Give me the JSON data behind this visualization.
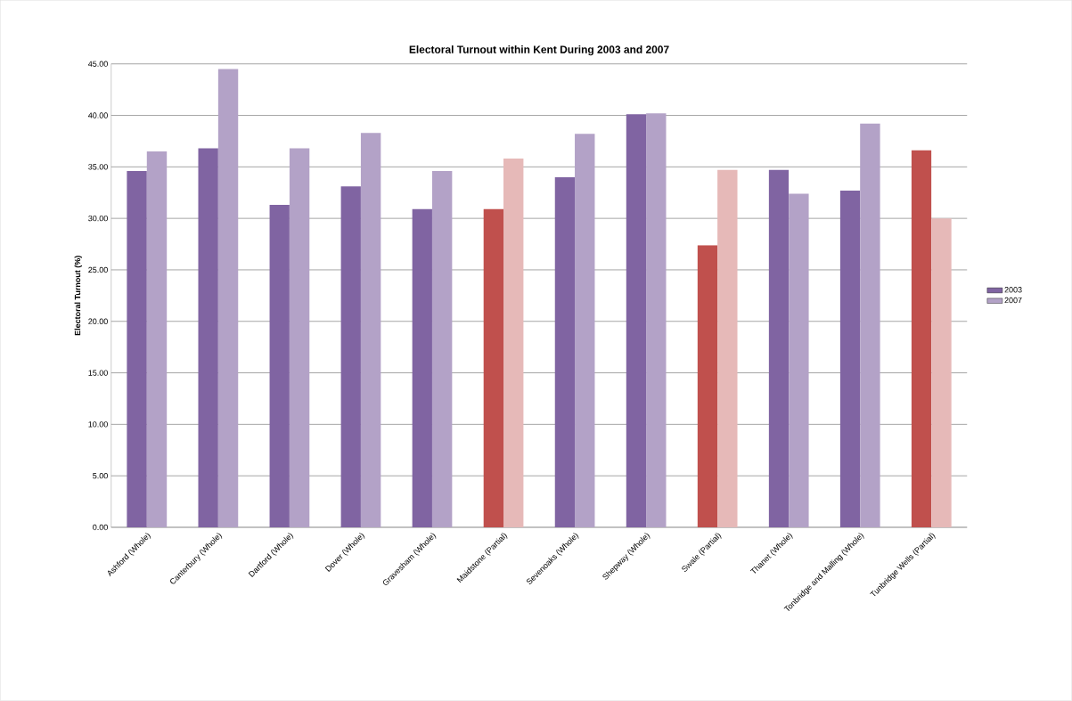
{
  "chart_data": {
    "type": "bar",
    "title": "Electoral Turnout within Kent During 2003 and 2007",
    "ylabel": "Electoral Turnout (%)",
    "categories": [
      "Ashford (Whole)",
      "Canterbury (Whole)",
      "Dartford (Whole)",
      "Dover (Whole)",
      "Gravesham (Whole)",
      "Maidstone (Partial)",
      "Sevenoaks (Whole)",
      "Shepway (Whole)",
      "Swale (Partial)",
      "Thanet (Whole)",
      "Tonbridge and Malling (Whole)",
      "Tunbridge Wells (Partial)"
    ],
    "series": [
      {
        "name": "2003",
        "color": "#8064a2",
        "colors": [
          "#8064a2",
          "#8064a2",
          "#8064a2",
          "#8064a2",
          "#8064a2",
          "#c0504d",
          "#8064a2",
          "#8064a2",
          "#c0504d",
          "#8064a2",
          "#8064a2",
          "#c0504d"
        ],
        "values": [
          34.6,
          36.8,
          31.3,
          33.1,
          30.9,
          30.9,
          34.0,
          40.1,
          27.4,
          34.7,
          32.7,
          36.6
        ]
      },
      {
        "name": "2007",
        "color": "#b3a2c7",
        "colors": [
          "#b3a2c7",
          "#b3a2c7",
          "#b3a2c7",
          "#b3a2c7",
          "#b3a2c7",
          "#e6b9b8",
          "#b3a2c7",
          "#b3a2c7",
          "#e6b9b8",
          "#b3a2c7",
          "#b3a2c7",
          "#e6b9b8"
        ],
        "values": [
          36.5,
          44.5,
          36.8,
          38.3,
          34.6,
          35.8,
          38.2,
          40.2,
          34.7,
          32.4,
          39.2,
          30.0
        ]
      }
    ],
    "ylim": [
      0,
      45
    ],
    "yticks": [
      {
        "value": 0,
        "label": "0.00"
      },
      {
        "value": 5,
        "label": "5.00"
      },
      {
        "value": 10,
        "label": "10.00"
      },
      {
        "value": 15,
        "label": "15.00"
      },
      {
        "value": 20,
        "label": "20.00"
      },
      {
        "value": 25,
        "label": "25.00"
      },
      {
        "value": 30,
        "label": "30.00"
      },
      {
        "value": 35,
        "label": "35.00"
      },
      {
        "value": 40,
        "label": "40.00"
      },
      {
        "value": 45,
        "label": "45.00"
      }
    ],
    "grid": "y",
    "legend": "right"
  }
}
